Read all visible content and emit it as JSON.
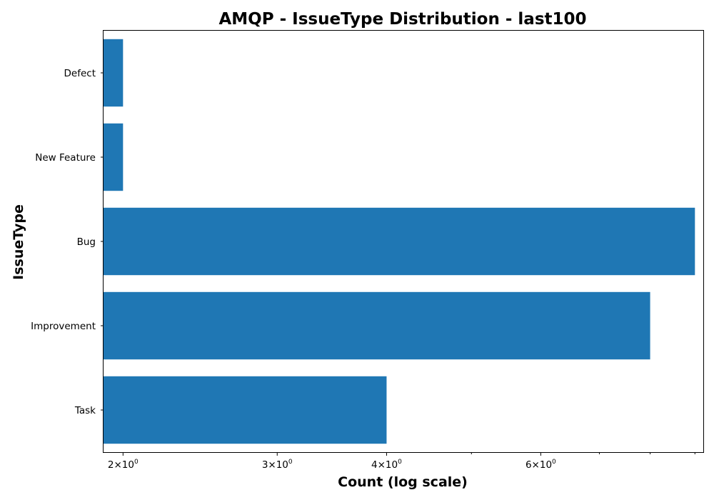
{
  "chart_data": {
    "type": "bar",
    "orientation": "horizontal",
    "title": "AMQP - IssueType Distribution - last100",
    "xlabel": "Count (log scale)",
    "ylabel": "IssueType",
    "x_scale": "log",
    "xlim": [
      1.9,
      9.2
    ],
    "grid": false,
    "bar_color": "#1f77b4",
    "categories": [
      "Task",
      "Improvement",
      "Bug",
      "New Feature",
      "Defect"
    ],
    "values": [
      4,
      8,
      9,
      2,
      2
    ],
    "x_major_ticks": [
      {
        "value": 2,
        "base": "2",
        "times": "×",
        "exp_base": "10",
        "exp": "0"
      },
      {
        "value": 3,
        "base": "3",
        "times": "×",
        "exp_base": "10",
        "exp": "0"
      },
      {
        "value": 4,
        "base": "4",
        "times": "×",
        "exp_base": "10",
        "exp": "0"
      },
      {
        "value": 6,
        "base": "6",
        "times": "×",
        "exp_base": "10",
        "exp": "0"
      }
    ],
    "x_minor_ticks": [
      5,
      7,
      8,
      9
    ]
  }
}
